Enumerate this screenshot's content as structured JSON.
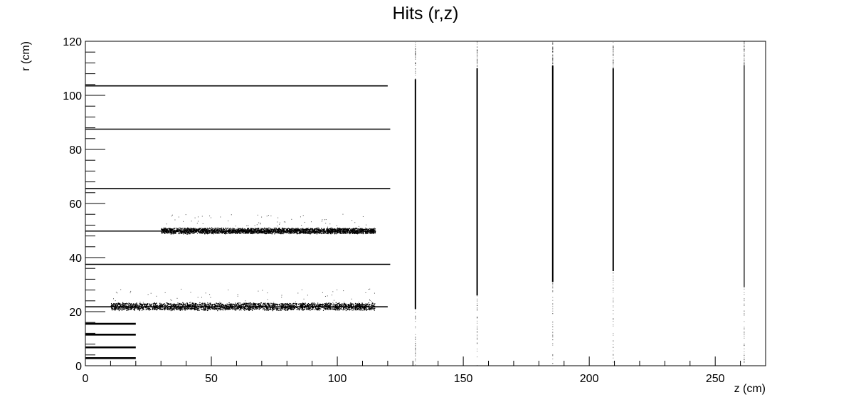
{
  "chart_data": {
    "type": "scatter",
    "title": "Hits (r,z)",
    "xlabel": "z (cm)",
    "ylabel": "r (cm)",
    "xlim": [
      0,
      270
    ],
    "ylim": [
      0,
      120
    ],
    "x_ticks": [
      0,
      50,
      100,
      150,
      200,
      250
    ],
    "y_ticks": [
      0,
      20,
      40,
      60,
      80,
      100,
      120
    ],
    "grid": false,
    "legend": "none",
    "marker_color": "#000000",
    "barrel_layers": [
      {
        "r": 2.8,
        "z_min": 0,
        "z_max": 20
      },
      {
        "r": 6.8,
        "z_min": 0,
        "z_max": 20
      },
      {
        "r": 11.5,
        "z_min": 0,
        "z_max": 20
      },
      {
        "r": 15.5,
        "z_min": 0,
        "z_max": 20
      },
      {
        "r": 21.8,
        "z_min": 0,
        "z_max": 120
      },
      {
        "r": 37.5,
        "z_min": 0,
        "z_max": 121
      },
      {
        "r": 49.8,
        "z_min": 0,
        "z_max": 115
      },
      {
        "r": 65.5,
        "z_min": 0,
        "z_max": 121
      },
      {
        "r": 87.5,
        "z_min": 0,
        "z_max": 121
      },
      {
        "r": 103.5,
        "z_min": 0,
        "z_max": 120
      }
    ],
    "endcap_disks": [
      {
        "z": 131.0,
        "r_min": 21,
        "r_max": 106
      },
      {
        "z": 155.5,
        "r_min": 26,
        "r_max": 110
      },
      {
        "z": 185.5,
        "r_min": 31,
        "r_max": 111
      },
      {
        "z": 209.5,
        "r_min": 35,
        "r_max": 110
      },
      {
        "z": 261.5,
        "r_min": 29,
        "r_max": 111
      }
    ],
    "scatter_bands": [
      {
        "r_center": 22,
        "r_spread": 1.5,
        "z_min": 10,
        "z_max": 115
      },
      {
        "r_center": 50,
        "r_spread": 1.2,
        "z_min": 30,
        "z_max": 115
      }
    ]
  }
}
